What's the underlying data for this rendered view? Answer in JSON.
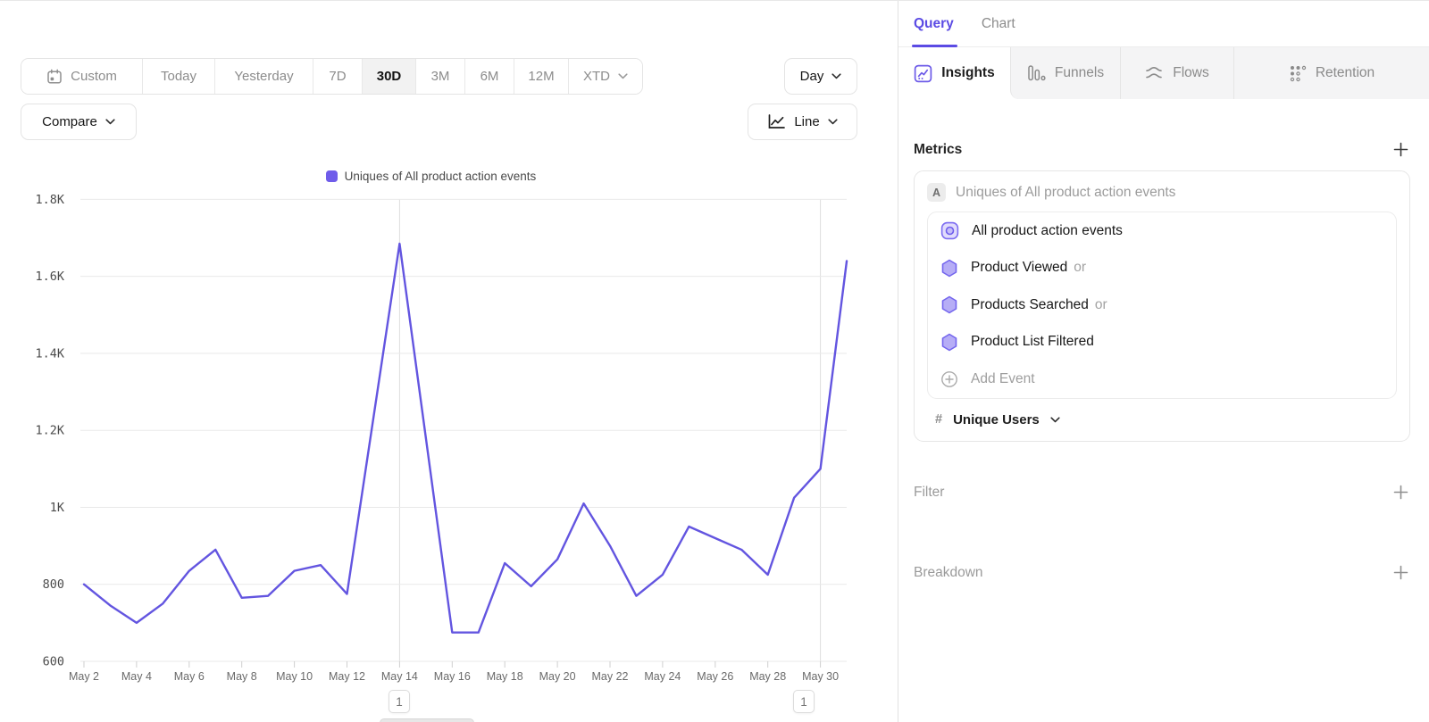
{
  "toolbar": {
    "ranges": [
      {
        "label": "Custom"
      },
      {
        "label": "Today"
      },
      {
        "label": "Yesterday"
      },
      {
        "label": "7D"
      },
      {
        "label": "30D",
        "selected": true
      },
      {
        "label": "3M"
      },
      {
        "label": "6M"
      },
      {
        "label": "12M"
      },
      {
        "label": "XTD",
        "has_chevron": true
      }
    ],
    "granularity_label": "Day",
    "compare_label": "Compare",
    "chart_type_label": "Line"
  },
  "legend": {
    "label": "Uniques of All product action events",
    "color": "#6F5CEA"
  },
  "chart_data": {
    "type": "line",
    "x": [
      "May 2",
      "May 3",
      "May 4",
      "May 5",
      "May 6",
      "May 7",
      "May 8",
      "May 9",
      "May 10",
      "May 11",
      "May 12",
      "May 13",
      "May 14",
      "May 15",
      "May 16",
      "May 17",
      "May 18",
      "May 19",
      "May 20",
      "May 21",
      "May 22",
      "May 23",
      "May 24",
      "May 25",
      "May 26",
      "May 27",
      "May 28",
      "May 29",
      "May 30",
      "May 31"
    ],
    "series": [
      {
        "name": "Uniques of All product action events",
        "color": "#6355E0",
        "values": [
          800,
          745,
          700,
          750,
          835,
          890,
          765,
          770,
          835,
          850,
          775,
          1230,
          1685,
          1180,
          675,
          675,
          855,
          795,
          865,
          1010,
          900,
          770,
          825,
          950,
          920,
          890,
          825,
          1025,
          1100,
          1640
        ]
      }
    ],
    "ylim": [
      600,
      1800
    ],
    "yticks": [
      {
        "value": 600,
        "label": "600"
      },
      {
        "value": 800,
        "label": "800"
      },
      {
        "value": 1000,
        "label": "1K"
      },
      {
        "value": 1200,
        "label": "1.2K"
      },
      {
        "value": 1400,
        "label": "1.4K"
      },
      {
        "value": 1600,
        "label": "1.6K"
      },
      {
        "value": 1800,
        "label": "1.8K"
      }
    ],
    "xtick_every": 2,
    "grid": "horizontal",
    "vertical_markers": [
      "May 14",
      "May 30"
    ],
    "legend_position": "top-center"
  },
  "annotations": [
    {
      "label": "1",
      "x_label": "May 14"
    },
    {
      "label": "1",
      "x_label": "May 30"
    }
  ],
  "panel": {
    "header_tabs": [
      {
        "label": "Query",
        "active": true
      },
      {
        "label": "Chart",
        "active": false
      }
    ],
    "report_tabs": [
      {
        "label": "Insights",
        "icon": "insights-icon",
        "active": true
      },
      {
        "label": "Funnels",
        "icon": "funnels-icon",
        "active": false
      },
      {
        "label": "Flows",
        "icon": "flows-icon",
        "active": false
      },
      {
        "label": "Retention",
        "icon": "retention-icon",
        "active": false
      }
    ],
    "metrics": {
      "heading": "Metrics",
      "add_label": "+",
      "metric": {
        "badge": "A",
        "title": "Uniques of All product action events",
        "events": [
          {
            "label": "All product action events",
            "icon": "event-group-icon"
          },
          {
            "label": "Product Viewed",
            "suffix": "or",
            "icon": "hexagon-event-icon"
          },
          {
            "label": "Products Searched",
            "suffix": "or",
            "icon": "hexagon-event-icon"
          },
          {
            "label": "Product List Filtered",
            "icon": "hexagon-event-icon"
          }
        ],
        "add_event_label": "Add Event",
        "aggregation": {
          "prefix": "#",
          "label": "Unique Users"
        }
      }
    },
    "filter": {
      "heading": "Filter",
      "add_label": "+"
    },
    "breakdown": {
      "heading": "Breakdown",
      "add_label": "+"
    }
  },
  "icons": [
    "calendar-icon",
    "chevron-down-icon",
    "line-chart-icon",
    "insights-icon",
    "funnels-icon",
    "flows-icon",
    "retention-icon",
    "event-group-icon",
    "hexagon-event-icon",
    "add-circle-icon",
    "plus-icon",
    "hash-icon"
  ]
}
